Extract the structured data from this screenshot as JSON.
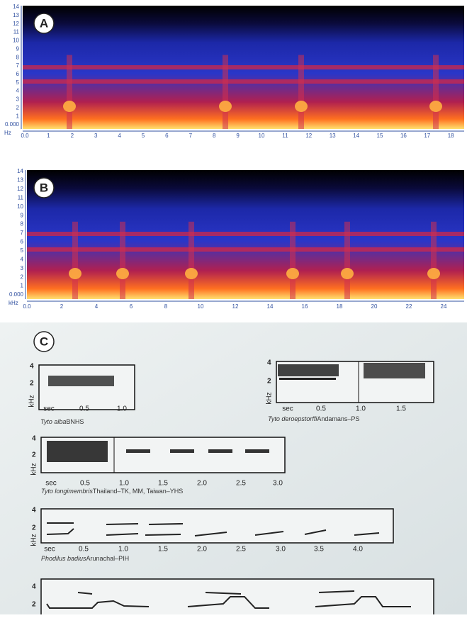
{
  "panels": [
    {
      "label": "A",
      "y_ticks": [
        "14",
        "13",
        "12",
        "11",
        "10",
        "9",
        "8",
        "7",
        "6",
        "5",
        "4",
        "3",
        "2",
        "1",
        "0.000"
      ],
      "y_unit": "Hz",
      "x_ticks": [
        "0.0",
        "1",
        "2",
        "3",
        "4",
        "5",
        "6",
        "7",
        "8",
        "9",
        "10",
        "11",
        "12",
        "13",
        "14",
        "15",
        "16",
        "17",
        "18"
      ]
    },
    {
      "label": "B",
      "y_ticks": [
        "14",
        "13",
        "12",
        "11",
        "10",
        "9",
        "8",
        "7",
        "6",
        "5",
        "4",
        "3",
        "2",
        "1",
        "0.000"
      ],
      "y_unit": "kHz",
      "x_ticks": [
        "0.0",
        "2",
        "4",
        "6",
        "8",
        "10",
        "12",
        "14",
        "16",
        "18",
        "20",
        "22",
        "24"
      ]
    },
    {
      "label": "C",
      "subpanels": [
        {
          "y_ticks": [
            "4",
            "2"
          ],
          "y_unit": "kHz",
          "x_ticks": [
            "sec",
            "0.5",
            "1.0"
          ],
          "caption": {
            "species": "Tyto alba",
            "source": "BNHS"
          }
        },
        {
          "y_ticks": [
            "4",
            "2"
          ],
          "y_unit": "kHz",
          "x_ticks": [
            "sec",
            "0.5",
            "1.0",
            "1.5"
          ],
          "caption": {
            "species": "Tyto deroepstorffi",
            "source": "Andamans–PS"
          }
        },
        {
          "y_ticks": [
            "4",
            "2"
          ],
          "y_unit": "kHz",
          "x_ticks": [
            "sec",
            "0.5",
            "1.0",
            "1.5",
            "2.0",
            "2.5",
            "3.0"
          ],
          "caption": {
            "species": "Tyto longimembris",
            "source": "Thailand–TK, MM, Taiwan–YHS"
          }
        },
        {
          "y_ticks": [
            "4",
            "2"
          ],
          "y_unit": "kHz",
          "x_ticks": [
            "sec",
            "0.5",
            "1.0",
            "1.5",
            "2.0",
            "2.5",
            "3.0",
            "3.5",
            "4.0"
          ],
          "caption": {
            "species": "Phodilus badius",
            "source": "Arunachal–PIH"
          }
        },
        {
          "y_ticks": [
            "4",
            "2"
          ]
        }
      ]
    }
  ]
}
